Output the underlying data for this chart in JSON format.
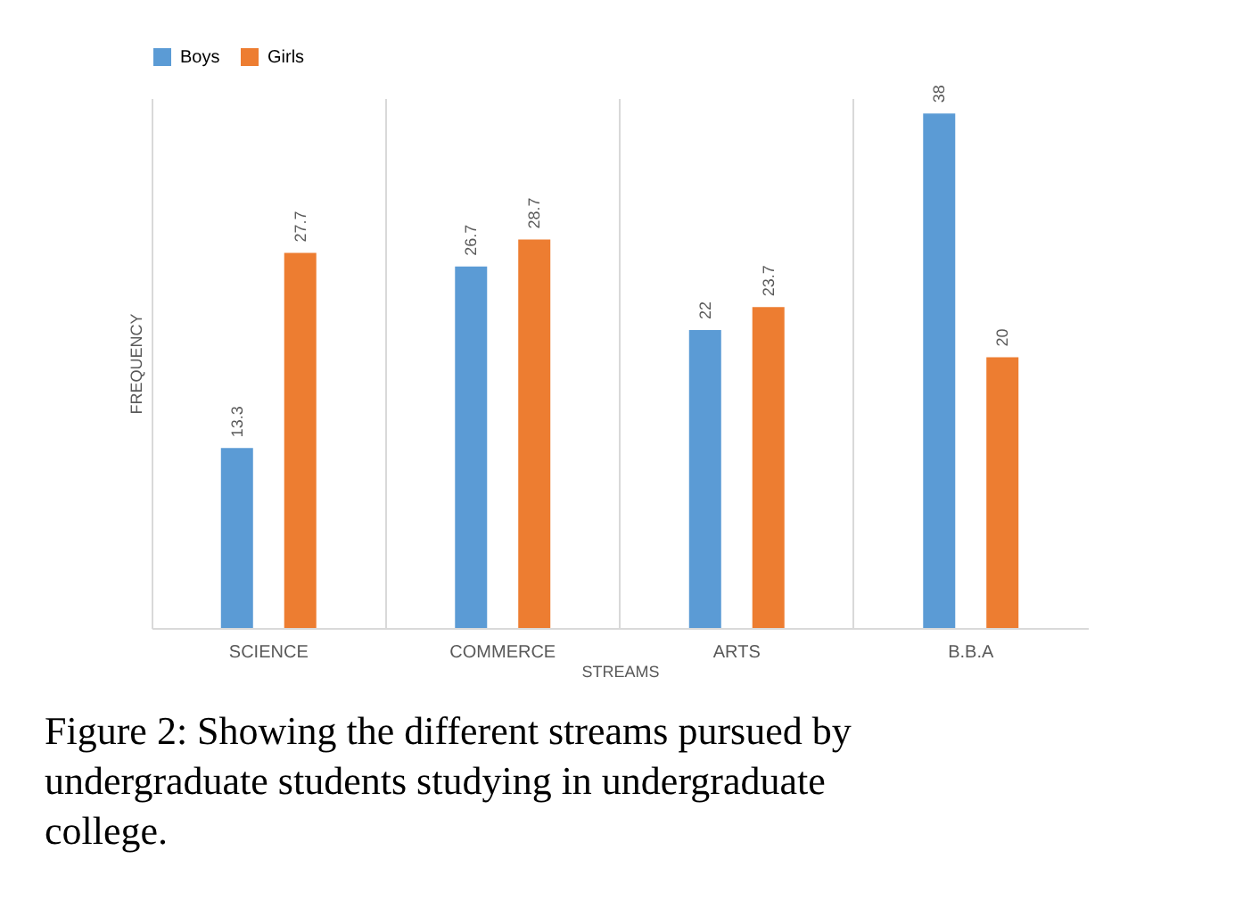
{
  "chart_data": {
    "type": "bar",
    "xlabel": "STREAMS",
    "ylabel": "FREQUENCY",
    "categories": [
      "SCIENCE",
      "COMMERCE",
      "ARTS",
      "B.B.A"
    ],
    "series": [
      {
        "name": "Boys",
        "color": "#5b9bd5",
        "values": [
          13.3,
          26.7,
          22,
          38
        ]
      },
      {
        "name": "Girls",
        "color": "#ed7d31",
        "values": [
          27.7,
          28.7,
          23.7,
          20
        ]
      }
    ],
    "data_labels": true,
    "legend": "top",
    "grid": "x",
    "annotations": [
      "Figure 2: Showing the different streams pursued by undergraduate students studying in undergraduate college."
    ]
  }
}
